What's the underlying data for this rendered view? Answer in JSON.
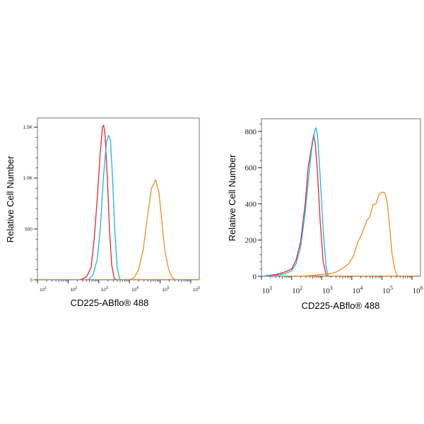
{
  "chart_data": [
    {
      "type": "line",
      "xscale": "log",
      "xlabel": "CD225-ABflo® 488",
      "ylabel": "Relative Cell Number",
      "xlim": [
        10,
        1900000
      ],
      "ylim": [
        0,
        1590
      ],
      "xticks": [
        10,
        100,
        1000,
        10000,
        100000,
        1000000
      ],
      "xtick_labels": [
        [
          "10",
          "1"
        ],
        [
          "10",
          "2"
        ],
        [
          "10",
          "3"
        ],
        [
          "10",
          "4"
        ],
        [
          "10",
          "5"
        ],
        [
          "10",
          "6"
        ]
      ],
      "yticks": [
        0,
        500,
        1000,
        1500
      ],
      "ytick_labels": [
        "0",
        "500",
        "1.0K",
        "1.5K"
      ],
      "grid": false,
      "series": [
        {
          "color": "#e8262a",
          "log10_x": [
            2.4,
            2.6,
            2.75,
            2.85,
            2.95,
            3.05,
            3.12,
            3.16,
            3.2,
            3.28,
            3.35,
            3.42,
            3.5,
            3.55
          ],
          "y": [
            0,
            30,
            120,
            400,
            800,
            1250,
            1500,
            1520,
            1450,
            1000,
            500,
            150,
            20,
            0
          ]
        },
        {
          "color": "#1ab4e8",
          "log10_x": [
            2.65,
            2.8,
            2.95,
            3.05,
            3.15,
            3.25,
            3.32,
            3.38,
            3.45,
            3.52,
            3.6,
            3.68,
            3.72
          ],
          "y": [
            0,
            40,
            200,
            500,
            1000,
            1350,
            1420,
            1380,
            1000,
            500,
            120,
            10,
            0
          ]
        },
        {
          "color": "#f08a24",
          "log10_x": [
            4.0,
            4.15,
            4.3,
            4.45,
            4.6,
            4.72,
            4.82,
            4.86,
            4.92,
            4.96,
            5.05,
            5.15,
            5.28,
            5.4,
            5.5
          ],
          "y": [
            0,
            20,
            100,
            300,
            650,
            900,
            960,
            985,
            900,
            870,
            600,
            300,
            100,
            20,
            0
          ]
        }
      ]
    },
    {
      "type": "line",
      "xscale": "log",
      "xlabel": "CD225-ABflo® 488",
      "ylabel": "Relative Cell Number",
      "xlim": [
        10,
        1900000
      ],
      "ylim": [
        0,
        870
      ],
      "xticks": [
        10,
        100,
        1000,
        10000,
        100000,
        1000000
      ],
      "xtick_labels": [
        [
          "10",
          "1"
        ],
        [
          "10",
          "2"
        ],
        [
          "10",
          "3"
        ],
        [
          "10",
          "4"
        ],
        [
          "10",
          "5"
        ],
        [
          "10",
          "6"
        ]
      ],
      "yticks": [
        0,
        200,
        400,
        600,
        800
      ],
      "ytick_labels": [
        "0",
        "200",
        "400",
        "600",
        "800"
      ],
      "grid": false,
      "series": [
        {
          "color": "#e8262a",
          "log10_x": [
            1.0,
            1.5,
            1.8,
            2.0,
            2.15,
            2.3,
            2.45,
            2.55,
            2.65,
            2.73,
            2.78,
            2.85,
            2.95,
            3.05,
            3.15,
            3.2
          ],
          "y": [
            0,
            10,
            25,
            40,
            90,
            190,
            400,
            600,
            700,
            780,
            740,
            600,
            300,
            80,
            5,
            0
          ]
        },
        {
          "color": "#1ab4e8",
          "log10_x": [
            1.0,
            1.5,
            1.8,
            2.0,
            2.15,
            2.3,
            2.45,
            2.55,
            2.65,
            2.75,
            2.81,
            2.86,
            2.95,
            3.05,
            3.15,
            3.22
          ],
          "y": [
            0,
            5,
            15,
            30,
            70,
            160,
            350,
            520,
            680,
            790,
            820,
            780,
            550,
            250,
            50,
            0
          ]
        },
        {
          "color": "#f08a24",
          "log10_x": [
            2.3,
            2.7,
            3.0,
            3.3,
            3.5,
            3.7,
            3.9,
            4.05,
            4.2,
            4.35,
            4.5,
            4.6,
            4.7,
            4.8,
            4.9,
            5.0,
            5.1,
            5.18,
            5.25,
            5.33,
            5.42,
            5.5,
            5.55
          ],
          "y": [
            0,
            5,
            10,
            15,
            25,
            45,
            70,
            110,
            190,
            240,
            310,
            330,
            395,
            400,
            450,
            465,
            460,
            400,
            280,
            130,
            40,
            5,
            0
          ]
        }
      ]
    }
  ]
}
